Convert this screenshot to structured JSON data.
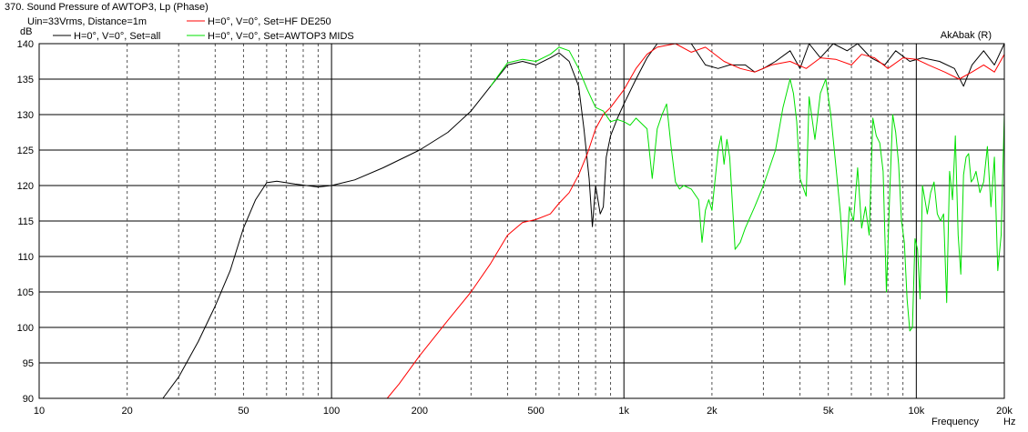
{
  "chart_data": {
    "type": "line",
    "title": "370. Sound Pressure of AWTOP3, Lp (Phase)",
    "conditions": "Uin=33Vrms, Distance=1m",
    "brand": "AkAbak (R)",
    "ylabel": "dB",
    "xlabel": "Frequency",
    "xunit": "Hz",
    "x_scale": "log",
    "xlim": [
      10,
      20000
    ],
    "ylim": [
      90,
      140
    ],
    "grid": true,
    "y_ticks": [
      90,
      95,
      100,
      105,
      110,
      115,
      120,
      125,
      130,
      135,
      140
    ],
    "x_ticks": [
      {
        "v": 10,
        "label": "10"
      },
      {
        "v": 20,
        "label": "20"
      },
      {
        "v": 50,
        "label": "50"
      },
      {
        "v": 100,
        "label": "100"
      },
      {
        "v": 200,
        "label": "200"
      },
      {
        "v": 500,
        "label": "500"
      },
      {
        "v": 1000,
        "label": "1k"
      },
      {
        "v": 2000,
        "label": "2k"
      },
      {
        "v": 5000,
        "label": "5k"
      },
      {
        "v": 10000,
        "label": "10k"
      },
      {
        "v": 20000,
        "label": "20k"
      }
    ],
    "series": [
      {
        "name": "H=0°, V=0°, Set=all",
        "color": "#000000",
        "points": [
          [
            10,
            90
          ],
          [
            26.5,
            90
          ],
          [
            30,
            93
          ],
          [
            35,
            98
          ],
          [
            40,
            103
          ],
          [
            45,
            108
          ],
          [
            50,
            114
          ],
          [
            55,
            118
          ],
          [
            60,
            120.4
          ],
          [
            65,
            120.6
          ],
          [
            75,
            120.2
          ],
          [
            90,
            119.8
          ],
          [
            100,
            120
          ],
          [
            120,
            120.8
          ],
          [
            150,
            122.5
          ],
          [
            200,
            125
          ],
          [
            250,
            127.5
          ],
          [
            300,
            130.5
          ],
          [
            350,
            134
          ],
          [
            400,
            137
          ],
          [
            450,
            137.5
          ],
          [
            500,
            137
          ],
          [
            560,
            138
          ],
          [
            600,
            138.7
          ],
          [
            650,
            137.5
          ],
          [
            700,
            134
          ],
          [
            730,
            128
          ],
          [
            760,
            121
          ],
          [
            780,
            114.2
          ],
          [
            800,
            120
          ],
          [
            830,
            116
          ],
          [
            850,
            117
          ],
          [
            870,
            124
          ],
          [
            900,
            127
          ],
          [
            950,
            129.5
          ],
          [
            1000,
            131.5
          ],
          [
            1100,
            135
          ],
          [
            1200,
            138
          ],
          [
            1300,
            140
          ],
          [
            1500,
            140
          ],
          [
            1700,
            140
          ],
          [
            1900,
            137
          ],
          [
            2100,
            136.5
          ],
          [
            2300,
            137
          ],
          [
            2600,
            137
          ],
          [
            2800,
            136
          ],
          [
            3000,
            136.5
          ],
          [
            3300,
            137.5
          ],
          [
            3700,
            139
          ],
          [
            4000,
            136.5
          ],
          [
            4300,
            140
          ],
          [
            4700,
            138
          ],
          [
            5200,
            140
          ],
          [
            5800,
            139
          ],
          [
            6300,
            140
          ],
          [
            7000,
            138
          ],
          [
            7800,
            137
          ],
          [
            8500,
            139
          ],
          [
            9500,
            137.5
          ],
          [
            10500,
            138
          ],
          [
            12000,
            137.5
          ],
          [
            13500,
            136.5
          ],
          [
            14500,
            134
          ],
          [
            15500,
            137
          ],
          [
            17000,
            139
          ],
          [
            18500,
            137
          ],
          [
            20000,
            140
          ]
        ]
      },
      {
        "name": "H=0°, V=0°, Set=HF DE250",
        "color": "#ff0000",
        "points": [
          [
            10,
            90
          ],
          [
            155,
            90
          ],
          [
            170,
            92
          ],
          [
            200,
            96
          ],
          [
            250,
            101
          ],
          [
            300,
            105
          ],
          [
            350,
            109
          ],
          [
            400,
            113
          ],
          [
            450,
            114.8
          ],
          [
            500,
            115.2
          ],
          [
            560,
            116
          ],
          [
            600,
            117.5
          ],
          [
            650,
            119
          ],
          [
            700,
            121.5
          ],
          [
            750,
            124.5
          ],
          [
            800,
            128
          ],
          [
            850,
            130
          ],
          [
            900,
            131
          ],
          [
            1000,
            133.5
          ],
          [
            1100,
            136.5
          ],
          [
            1200,
            138.5
          ],
          [
            1300,
            139.5
          ],
          [
            1500,
            140
          ],
          [
            1700,
            138.8
          ],
          [
            1900,
            139.5
          ],
          [
            2200,
            137.5
          ],
          [
            2500,
            136.5
          ],
          [
            2800,
            136
          ],
          [
            3200,
            137
          ],
          [
            3700,
            137.5
          ],
          [
            4200,
            136.5
          ],
          [
            4700,
            138
          ],
          [
            5300,
            137.8
          ],
          [
            6000,
            137
          ],
          [
            6500,
            138.5
          ],
          [
            7200,
            138
          ],
          [
            8000,
            136.5
          ],
          [
            9000,
            138
          ],
          [
            10000,
            137.8
          ],
          [
            11000,
            137
          ],
          [
            12500,
            136
          ],
          [
            14000,
            135
          ],
          [
            15500,
            136
          ],
          [
            17000,
            137
          ],
          [
            18500,
            136
          ],
          [
            20000,
            138.5
          ]
        ]
      },
      {
        "name": "H=0°, V=0°, Set=AWTOP3 MIDS",
        "color": "#00e000",
        "points": [
          [
            350,
            134
          ],
          [
            400,
            137.3
          ],
          [
            450,
            137.8
          ],
          [
            500,
            137.5
          ],
          [
            560,
            138.5
          ],
          [
            600,
            139.5
          ],
          [
            650,
            139
          ],
          [
            700,
            136.5
          ],
          [
            750,
            133.5
          ],
          [
            800,
            131
          ],
          [
            850,
            130.5
          ],
          [
            900,
            129
          ],
          [
            950,
            129.3
          ],
          [
            1000,
            129
          ],
          [
            1050,
            128.5
          ],
          [
            1100,
            129.5
          ],
          [
            1200,
            128
          ],
          [
            1250,
            121
          ],
          [
            1300,
            128
          ],
          [
            1350,
            130
          ],
          [
            1400,
            131.5
          ],
          [
            1450,
            125.5
          ],
          [
            1500,
            120.5
          ],
          [
            1550,
            119.5
          ],
          [
            1600,
            120
          ],
          [
            1700,
            119.5
          ],
          [
            1800,
            118
          ],
          [
            1850,
            112
          ],
          [
            1900,
            116.5
          ],
          [
            1950,
            118
          ],
          [
            2000,
            116.5
          ],
          [
            2100,
            125
          ],
          [
            2150,
            127
          ],
          [
            2200,
            123
          ],
          [
            2250,
            126.5
          ],
          [
            2300,
            124
          ],
          [
            2400,
            111
          ],
          [
            2500,
            112
          ],
          [
            2600,
            114
          ],
          [
            2800,
            117
          ],
          [
            3000,
            120
          ],
          [
            3300,
            125
          ],
          [
            3500,
            131
          ],
          [
            3700,
            135
          ],
          [
            3800,
            133
          ],
          [
            3900,
            129
          ],
          [
            4000,
            121
          ],
          [
            4200,
            118.5
          ],
          [
            4300,
            132.5
          ],
          [
            4500,
            126.5
          ],
          [
            4700,
            133
          ],
          [
            4900,
            135
          ],
          [
            5100,
            130
          ],
          [
            5300,
            123
          ],
          [
            5500,
            116
          ],
          [
            5700,
            106
          ],
          [
            5900,
            117
          ],
          [
            6100,
            115
          ],
          [
            6300,
            122.5
          ],
          [
            6500,
            114
          ],
          [
            6700,
            117
          ],
          [
            6900,
            113
          ],
          [
            7100,
            129.5
          ],
          [
            7300,
            127
          ],
          [
            7500,
            126
          ],
          [
            7700,
            122
          ],
          [
            7900,
            105
          ],
          [
            8100,
            118
          ],
          [
            8300,
            130
          ],
          [
            8500,
            127.5
          ],
          [
            8700,
            123
          ],
          [
            8900,
            115
          ],
          [
            9100,
            112
          ],
          [
            9300,
            104
          ],
          [
            9500,
            99.5
          ],
          [
            9700,
            100
          ],
          [
            9900,
            112.5
          ],
          [
            10100,
            111
          ],
          [
            10300,
            104
          ],
          [
            10500,
            120
          ],
          [
            10700,
            118
          ],
          [
            10900,
            116
          ],
          [
            11200,
            119
          ],
          [
            11500,
            120.5
          ],
          [
            11800,
            116
          ],
          [
            12100,
            115
          ],
          [
            12400,
            116
          ],
          [
            12700,
            103.5
          ],
          [
            13000,
            122
          ],
          [
            13300,
            118
          ],
          [
            13600,
            127
          ],
          [
            13900,
            113
          ],
          [
            14200,
            107.5
          ],
          [
            14500,
            121.5
          ],
          [
            14800,
            124
          ],
          [
            15100,
            124.5
          ],
          [
            15400,
            120.5
          ],
          [
            15700,
            121
          ],
          [
            16000,
            122
          ],
          [
            16500,
            119
          ],
          [
            17000,
            120.5
          ],
          [
            17500,
            125.5
          ],
          [
            18000,
            117
          ],
          [
            18500,
            124
          ],
          [
            19000,
            108
          ],
          [
            19500,
            113
          ],
          [
            20000,
            130
          ]
        ]
      }
    ]
  }
}
